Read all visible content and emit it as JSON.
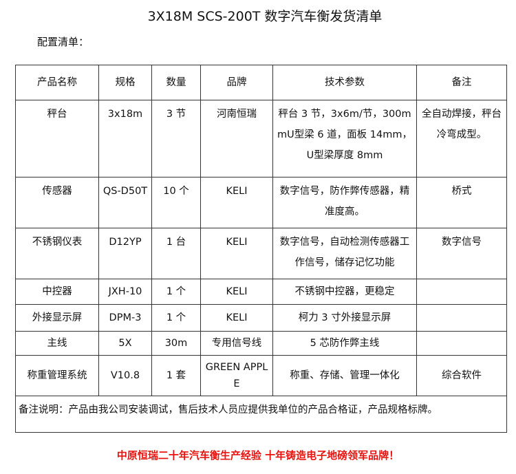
{
  "title": "3X18M SCS-200T 数字汽车衡发货清单",
  "subtitle": "配置清单：",
  "table": {
    "headers": [
      "产品名称",
      "规格",
      "数量",
      "品牌",
      "技术参数",
      "备注"
    ],
    "rows": [
      [
        "秤台",
        "3x18m",
        "3 节",
        "河南恒瑞",
        "秤台 3 节，3x6m/节，300mmU型梁 6 道，面板 14mm，U型梁厚度 8mm",
        "全自动焊接，秤台冷弯成型。"
      ],
      [
        "传感器",
        "QS-D50T",
        "10 个",
        "KELI",
        "数字信号，防作弊传感器，精准度高。",
        "桥式"
      ],
      [
        "不锈钢仪表",
        "D12YP",
        "1 台",
        "KELI",
        "数字信号，自动检测传感器工作信号，储存记忆功能",
        "数字信号"
      ],
      [
        "中控器",
        "JXH-10",
        "1 个",
        "KELI",
        "不锈钢中控器，更稳定",
        ""
      ],
      [
        "外接显示屏",
        "DPM-3",
        "1 个",
        "KELI",
        "柯力 3 寸外接显示屏",
        ""
      ],
      [
        "主线",
        "5X",
        "30m",
        "专用信号线",
        "5 芯防作弊主线",
        ""
      ],
      [
        "称重管理系统",
        "V10.8",
        "1 套",
        "GREEN APPLE",
        "称重、存储、管理一体化",
        "综合软件"
      ]
    ],
    "remark": "备注说明：产品由我公司安装调试，售后技术人员应提供我单位的产品合格证，产品规格标牌。"
  },
  "slogan": "中原恒瑞二十年汽车衡生产经验 十年铸造电子地磅领军品牌！",
  "colors": {
    "slogan": "#e8120c"
  }
}
